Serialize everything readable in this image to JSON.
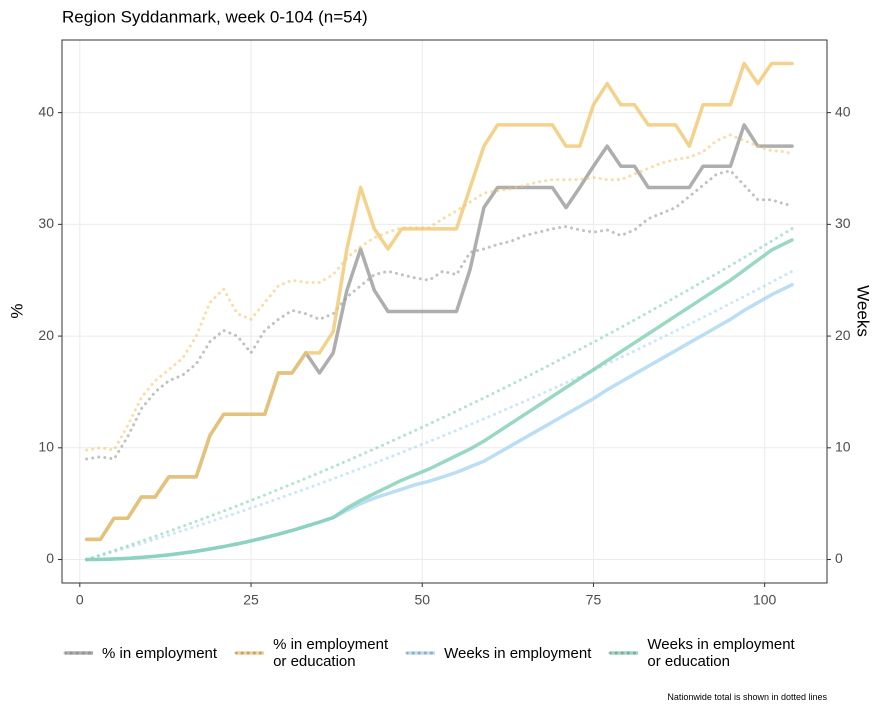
{
  "chart_data": {
    "type": "line",
    "title": "Region Syddanmark, week 0-104 (n=54)",
    "ylabel": "%",
    "y2label": "Weeks",
    "note": "Nationwide total is shown in dotted lines",
    "xlim": [
      -2.6,
      109.1
    ],
    "ylim": [
      -2.1,
      46.5
    ],
    "y2lim": [
      -2.1,
      46.5
    ],
    "xticks": [
      0,
      25,
      50,
      75,
      100
    ],
    "yticks": [
      0,
      10,
      20,
      30,
      40
    ],
    "y2ticks": [
      0,
      10,
      20,
      30,
      40
    ],
    "grid": true,
    "x": [
      1,
      3,
      5,
      7,
      9,
      11,
      13,
      15,
      17,
      19,
      21,
      23,
      25,
      27,
      29,
      31,
      33,
      35,
      37,
      39,
      41,
      43,
      45,
      47,
      49,
      51,
      53,
      55,
      57,
      59,
      61,
      63,
      65,
      67,
      69,
      71,
      73,
      75,
      77,
      79,
      81,
      83,
      85,
      87,
      89,
      91,
      93,
      95,
      97,
      99,
      101,
      103,
      104
    ],
    "series": [
      {
        "name": "% in employment",
        "color": "#9a9a9a",
        "axis": "y",
        "values": [
          1.8,
          1.8,
          3.7,
          3.7,
          5.6,
          5.6,
          7.4,
          7.4,
          7.4,
          11.1,
          13.0,
          13.0,
          13.0,
          13.0,
          16.7,
          16.7,
          18.5,
          16.7,
          18.5,
          24.1,
          27.8,
          24.1,
          22.2,
          22.2,
          22.2,
          22.2,
          22.2,
          22.2,
          26.0,
          31.5,
          33.3,
          33.3,
          33.3,
          33.3,
          33.3,
          31.5,
          33.3,
          35.2,
          37.0,
          35.2,
          35.2,
          33.3,
          33.3,
          33.3,
          33.3,
          35.2,
          35.2,
          35.2,
          38.9,
          37.0,
          37.0,
          37.0,
          37.0
        ],
        "nationwide_values": [
          9.0,
          9.2,
          9.0,
          11,
          13.5,
          15,
          16,
          16.5,
          17.5,
          19.5,
          20.5,
          20,
          18.5,
          20.5,
          21.5,
          22.3,
          22,
          21.5,
          22,
          23.5,
          24.5,
          25.5,
          25.8,
          25.5,
          25.2,
          25.0,
          25.8,
          25.5,
          27.5,
          27.8,
          28.2,
          28.5,
          29,
          29.3,
          29.6,
          29.8,
          29.5,
          29.3,
          29.5,
          29,
          29.5,
          30.5,
          31.0,
          31.5,
          32.5,
          33.5,
          34.5,
          34.8,
          33.5,
          32.2,
          32.2,
          31.8,
          31.7
        ]
      },
      {
        "name": "% in employment\nor education",
        "color": "#f3c76e",
        "axis": "y",
        "values": [
          1.8,
          1.8,
          3.7,
          3.7,
          5.6,
          5.6,
          7.4,
          7.4,
          7.4,
          11.1,
          13.0,
          13.0,
          13.0,
          13.0,
          16.7,
          16.7,
          18.5,
          18.5,
          20.4,
          27.8,
          33.3,
          29.6,
          27.8,
          29.6,
          29.6,
          29.6,
          29.6,
          29.6,
          33.3,
          37.0,
          38.9,
          38.9,
          38.9,
          38.9,
          38.9,
          37.0,
          37.0,
          40.7,
          42.6,
          40.7,
          40.7,
          38.9,
          38.9,
          38.9,
          37.0,
          40.7,
          40.7,
          40.7,
          44.4,
          42.6,
          44.4,
          44.4,
          44.4
        ],
        "nationwide_values": [
          9.8,
          10,
          9.8,
          12,
          14.5,
          16,
          17,
          18,
          20,
          23,
          24.2,
          22,
          21.5,
          23,
          24.5,
          25,
          24.8,
          24.8,
          25.5,
          27,
          28,
          28.8,
          29.3,
          29.7,
          29.7,
          29.7,
          30.5,
          31.2,
          32,
          32.8,
          33,
          33.2,
          33.5,
          33.8,
          34,
          34,
          34,
          34.2,
          34,
          34,
          34.5,
          35,
          35.5,
          35.8,
          36,
          36.5,
          37.5,
          38,
          37.5,
          37,
          36.6,
          36.5,
          36.3
        ]
      },
      {
        "name": "Weeks in employment",
        "color": "#a9d6f0",
        "axis": "y2",
        "values": [
          0,
          0.01,
          0.05,
          0.1,
          0.19,
          0.29,
          0.42,
          0.57,
          0.74,
          0.94,
          1.16,
          1.4,
          1.67,
          1.96,
          2.27,
          2.6,
          2.97,
          3.35,
          3.76,
          4.4,
          5.0,
          5.5,
          5.9,
          6.3,
          6.7,
          7.0,
          7.4,
          7.8,
          8.3,
          8.8,
          9.5,
          10.2,
          10.9,
          11.6,
          12.3,
          13.0,
          13.7,
          14.4,
          15.2,
          15.9,
          16.6,
          17.3,
          18.0,
          18.7,
          19.4,
          20.1,
          20.8,
          21.5,
          22.3,
          23.0,
          23.7,
          24.3,
          24.6
        ],
        "nationwide_values": [
          0,
          0.35,
          0.71,
          1.07,
          1.44,
          1.82,
          2.2,
          2.59,
          2.98,
          3.38,
          3.78,
          4.19,
          4.61,
          5.03,
          5.46,
          5.9,
          6.33,
          6.78,
          7.23,
          7.69,
          8.15,
          8.62,
          9.1,
          9.58,
          10.07,
          10.56,
          11.06,
          11.57,
          12.08,
          12.59,
          13.12,
          13.65,
          14.18,
          14.72,
          15.27,
          15.83,
          16.38,
          16.94,
          17.52,
          18.09,
          18.67,
          19.27,
          19.86,
          20.46,
          21.06,
          21.68,
          22.29,
          22.92,
          23.54,
          24.18,
          24.82,
          25.47,
          25.8
        ]
      },
      {
        "name": "Weeks in employment\nor education",
        "color": "#80ceb3",
        "axis": "y2",
        "values": [
          0,
          0.01,
          0.05,
          0.1,
          0.19,
          0.29,
          0.42,
          0.57,
          0.74,
          0.94,
          1.16,
          1.4,
          1.67,
          1.96,
          2.27,
          2.6,
          2.97,
          3.35,
          3.76,
          4.6,
          5.3,
          5.9,
          6.5,
          7.1,
          7.6,
          8.1,
          8.7,
          9.3,
          9.9,
          10.6,
          11.4,
          12.2,
          13.0,
          13.8,
          14.6,
          15.4,
          16.2,
          17.0,
          17.8,
          18.6,
          19.4,
          20.2,
          21.0,
          21.8,
          22.6,
          23.4,
          24.2,
          25.0,
          25.9,
          26.8,
          27.7,
          28.3,
          28.6
        ],
        "nationwide_values": [
          0,
          0.4,
          0.81,
          1.23,
          1.65,
          2.09,
          2.52,
          2.97,
          3.42,
          3.88,
          4.34,
          4.81,
          5.29,
          5.77,
          6.27,
          6.77,
          7.27,
          7.78,
          8.3,
          8.83,
          9.36,
          9.9,
          10.45,
          11.0,
          11.56,
          12.13,
          12.7,
          13.28,
          13.87,
          14.46,
          15.06,
          15.67,
          16.28,
          16.9,
          17.53,
          18.17,
          18.81,
          19.45,
          20.11,
          20.77,
          21.44,
          22.12,
          22.8,
          23.49,
          24.18,
          24.89,
          25.59,
          26.31,
          27.03,
          27.76,
          28.5,
          29.24,
          29.62
        ]
      }
    ]
  }
}
